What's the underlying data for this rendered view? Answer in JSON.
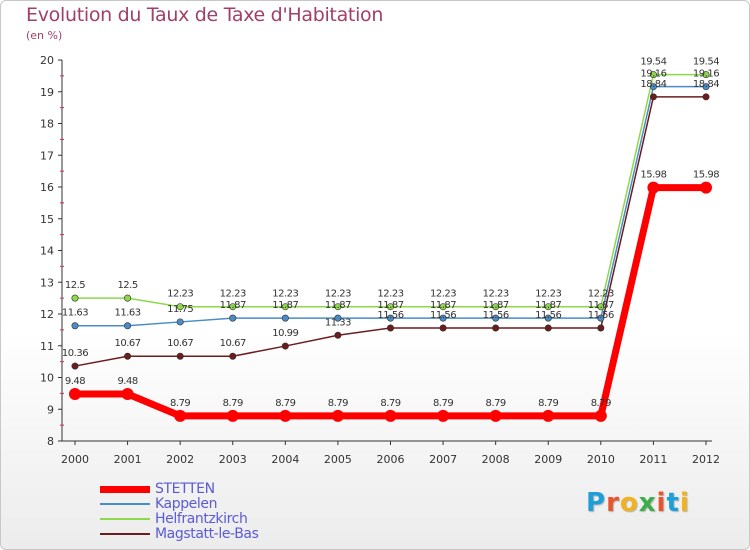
{
  "header": {
    "title": "Evolution du Taux de Taxe d'Habitation",
    "subtitle": "(en %)"
  },
  "logo": {
    "text": "Proxiti",
    "colors": [
      "#1f9fd8",
      "#e8542b",
      "#f2b21b",
      "#3cae4a",
      "#e8542b",
      "#1f9fd8",
      "#f2b21b"
    ]
  },
  "chart_data": {
    "type": "line",
    "title": "Evolution du Taux de Taxe d'Habitation",
    "ylabel": "(en %)",
    "xlabel": "",
    "x": [
      "2000",
      "2001",
      "2002",
      "2003",
      "2004",
      "2005",
      "2006",
      "2007",
      "2008",
      "2009",
      "2010",
      "2011",
      "2012"
    ],
    "ylim": [
      8,
      20
    ],
    "yticks": [
      "8",
      "9",
      "10",
      "11",
      "12",
      "13",
      "14",
      "15",
      "16",
      "17",
      "18",
      "19",
      "20"
    ],
    "grid": false,
    "legend_position": "bottom-left",
    "series": [
      {
        "name": "STETTEN",
        "color": "#ff0000",
        "emphasis": true,
        "values": [
          9.48,
          9.48,
          8.79,
          8.79,
          8.79,
          8.79,
          8.79,
          8.79,
          8.79,
          8.79,
          8.79,
          15.98,
          15.98
        ],
        "labels": [
          "9.48",
          "9.48",
          "8.79",
          "8.79",
          "8.79",
          "8.79",
          "8.79",
          "8.79",
          "8.79",
          "8.79",
          "8.79",
          "15.98",
          "15.98"
        ]
      },
      {
        "name": "Kappelen",
        "color": "#4a8cc8",
        "emphasis": false,
        "values": [
          11.63,
          11.63,
          11.75,
          11.87,
          11.87,
          11.87,
          11.87,
          11.87,
          11.87,
          11.87,
          11.87,
          19.16,
          19.16
        ],
        "labels": [
          "11.63",
          "11.63",
          "11.75",
          "11.87",
          "11.87",
          "11.87",
          "11.87",
          "11.87",
          "11.87",
          "11.87",
          "11.87",
          "19.16",
          "19.16"
        ]
      },
      {
        "name": "Helfrantzkirch",
        "color": "#8ed84a",
        "emphasis": false,
        "values": [
          12.5,
          12.5,
          12.23,
          12.23,
          12.23,
          12.23,
          12.23,
          12.23,
          12.23,
          12.23,
          12.23,
          19.54,
          19.54
        ],
        "labels": [
          "12.5",
          "12.5",
          "12.23",
          "12.23",
          "12.23",
          "12.23",
          "12.23",
          "12.23",
          "12.23",
          "12.23",
          "12.23",
          "19.54",
          "19.54"
        ]
      },
      {
        "name": "Magstatt-le-Bas",
        "color": "#6b1c1c",
        "emphasis": false,
        "values": [
          10.36,
          10.67,
          10.67,
          10.67,
          10.99,
          11.33,
          11.56,
          11.56,
          11.56,
          11.56,
          11.56,
          18.84,
          18.84
        ],
        "labels": [
          "10.36",
          "10.67",
          "10.67",
          "10.67",
          "10.99",
          "11.33",
          "11.56",
          "11.56",
          "11.56",
          "11.56",
          "11.56",
          "18.84",
          "18.84"
        ]
      }
    ]
  }
}
